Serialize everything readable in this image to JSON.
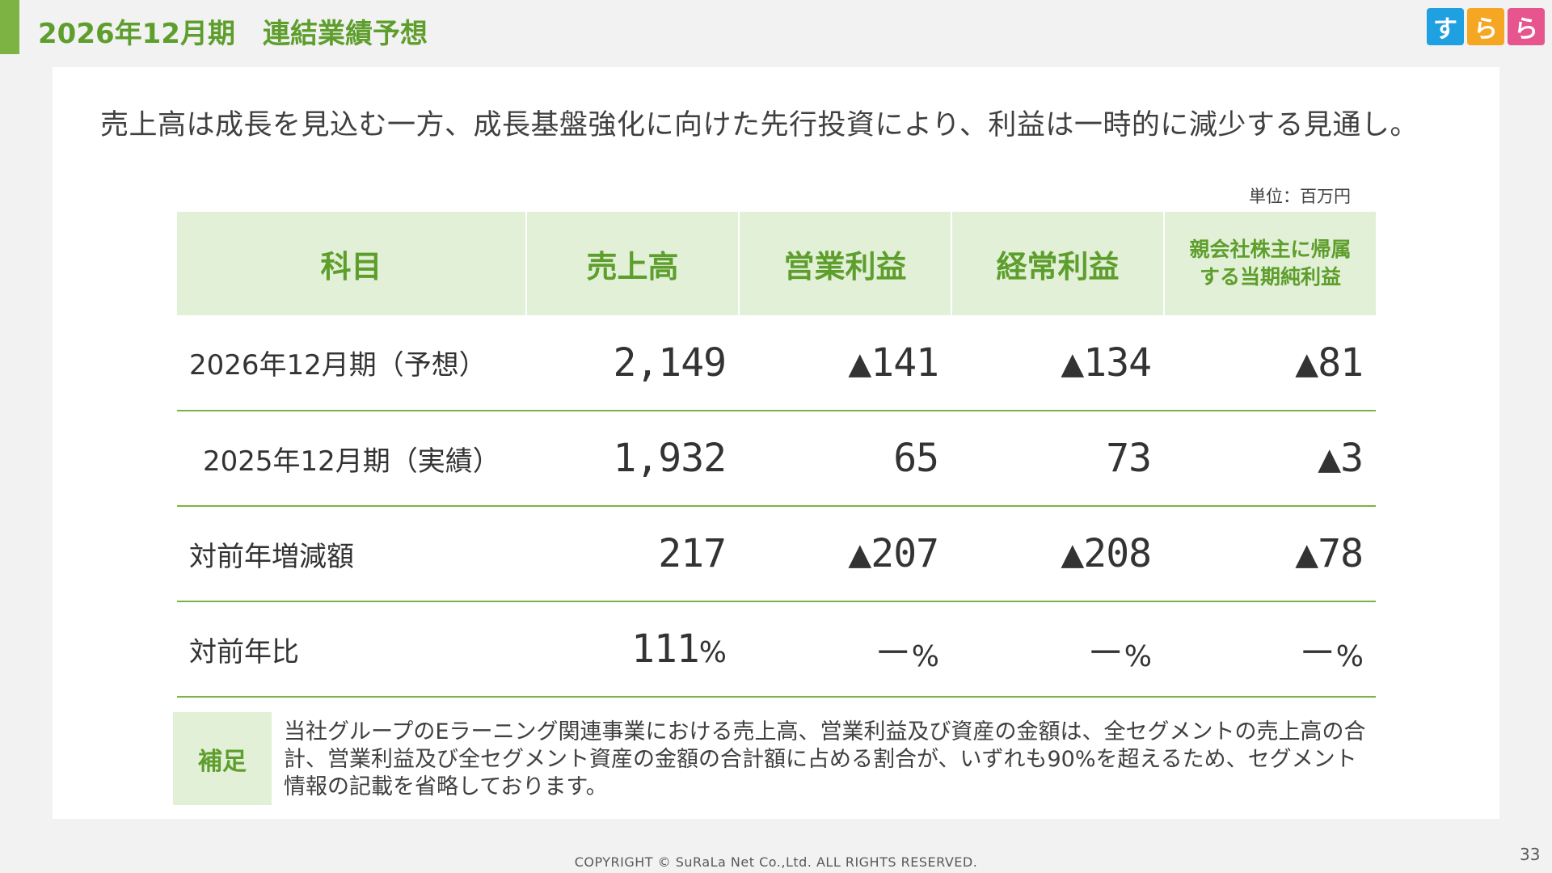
{
  "header": {
    "title_period": "2026年12月期",
    "title_main": "連結業績予想",
    "logo_chars": [
      "す",
      "ら",
      "ら"
    ],
    "accent_color": "#7cb342",
    "logo_colors": [
      "#1fa0e0",
      "#f5a623",
      "#e6558e"
    ]
  },
  "lead_text": "売上高は成長を見込む一方、成長基盤強化に向けた先行投資により、利益は一時的に減少する見通し。",
  "unit_text": "単位：百万円",
  "table": {
    "headers": {
      "item": "科目",
      "sales": "売上高",
      "operating": "営業利益",
      "ordinary": "経常利益",
      "net_line1": "親会社株主に帰属",
      "net_line2": "する当期純利益"
    },
    "rows": [
      {
        "label": "2026年12月期（予想）",
        "sales": "2,149",
        "operating": "▲141",
        "ordinary": "▲134",
        "net": "▲81"
      },
      {
        "label": "2025年12月期（実績）",
        "sales": "1,932",
        "operating": "65",
        "ordinary": "73",
        "net": "▲3"
      },
      {
        "label": "対前年増減額",
        "sales": "217",
        "operating": "▲207",
        "ordinary": "▲208",
        "net": "▲78"
      },
      {
        "label": "対前年比",
        "sales": "111",
        "operating": "－",
        "ordinary": "－",
        "net": "－",
        "suffix": "%"
      }
    ]
  },
  "note": {
    "label": "補足",
    "text": "当社グループのEラーニング関連事業における売上高、営業利益及び資産の金額は、全セグメントの売上高の合計、営業利益及び全セグメント資産の金額の合計額に占める割合が、いずれも90%を超えるため、セグメント情報の記載を省略しております。"
  },
  "footer": {
    "copyright": "COPYRIGHT © SuRaLa Net Co.,Ltd. ALL RIGHTS RESERVED.",
    "page_number": "33"
  }
}
